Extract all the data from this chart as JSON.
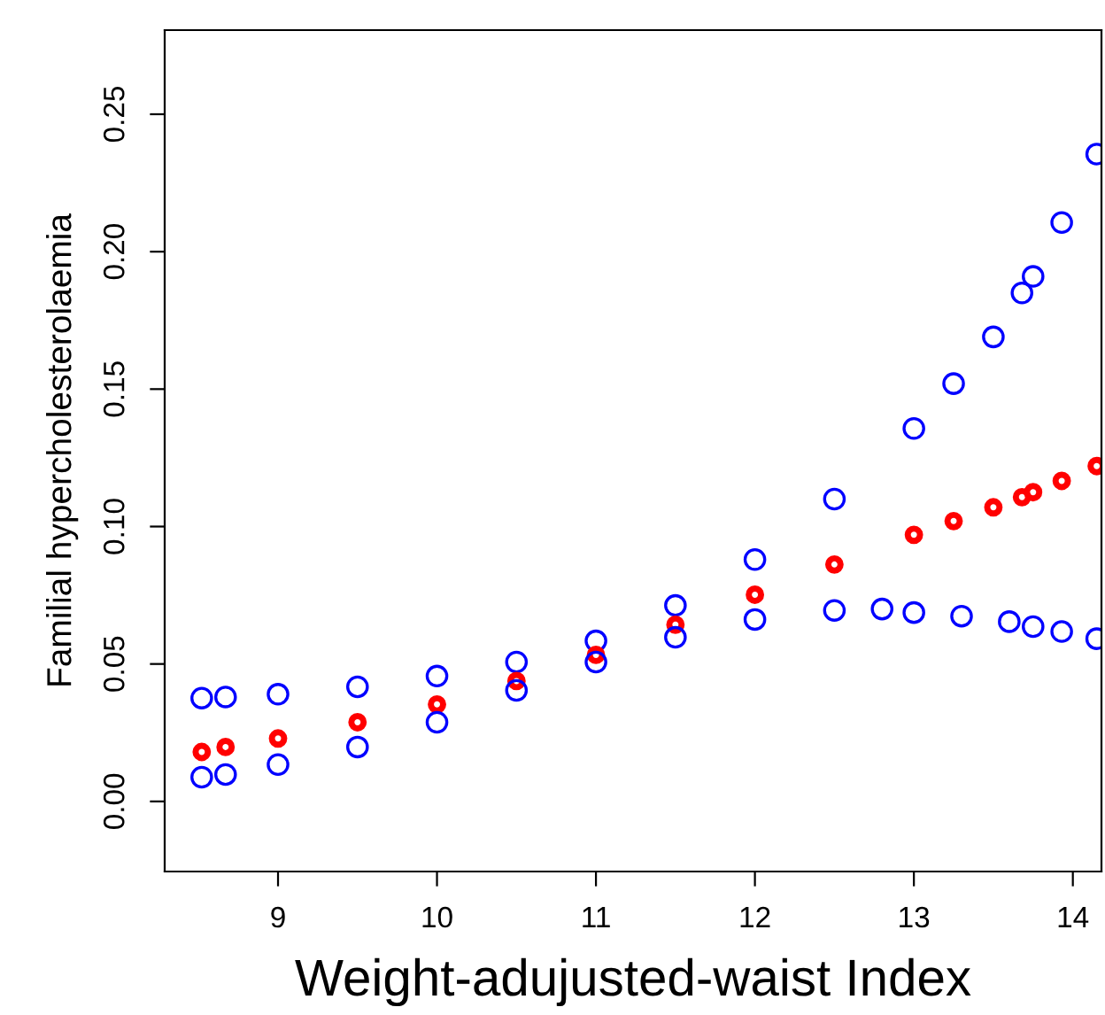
{
  "chart_data": {
    "type": "scatter",
    "xlabel": "Weight-adujusted-waist Index",
    "ylabel": "Familial hypercholesterolaemia",
    "xlim": [
      8.287,
      14.18
    ],
    "ylim": [
      -0.0255,
      0.2806
    ],
    "xticks": [
      9,
      10,
      11,
      12,
      13,
      14
    ],
    "yticks": [
      {
        "value": 0,
        "label": "0.00"
      },
      0.05,
      {
        "value": 0.1,
        "label": "0.10"
      },
      0.15,
      {
        "value": 0.2,
        "label": "0.20"
      },
      0.25
    ],
    "marker": "circle",
    "grid": false,
    "legend": false,
    "series": [
      {
        "color": "#0000ff",
        "x": [
          8.52,
          8.67,
          9,
          9.5,
          10,
          10.5,
          11,
          11.5,
          12,
          12.5,
          13,
          13.25,
          13.5,
          13.68,
          13.75,
          13.93,
          14.15
        ],
        "values": [
          0.0376,
          0.038,
          0.039,
          0.0417,
          0.0456,
          0.0507,
          0.0584,
          0.0713,
          0.088,
          0.11,
          0.1357,
          0.152,
          0.169,
          0.185,
          0.191,
          0.2106,
          0.2355
        ]
      },
      {
        "color": "#ff0000",
        "x": [
          8.52,
          8.67,
          9,
          9.5,
          10,
          10.5,
          11,
          11.5,
          12,
          12.5,
          13,
          13.25,
          13.5,
          13.68,
          13.75,
          13.93,
          14.15
        ],
        "values": [
          0.018,
          0.0198,
          0.0229,
          0.0288,
          0.0353,
          0.0438,
          0.0533,
          0.0643,
          0.0752,
          0.0862,
          0.097,
          0.102,
          0.107,
          0.1107,
          0.1125,
          0.1166,
          0.122
        ]
      },
      {
        "color": "#0000ff",
        "x": [
          8.52,
          8.67,
          9,
          9.5,
          10,
          10.5,
          11,
          11.5,
          12,
          12.5,
          12.8,
          13,
          13.3,
          13.6,
          13.75,
          13.93,
          14.15
        ],
        "values": [
          0.0088,
          0.0098,
          0.0134,
          0.0198,
          0.0288,
          0.0404,
          0.0507,
          0.0597,
          0.0662,
          0.0695,
          0.07,
          0.0687,
          0.0674,
          0.0654,
          0.0636,
          0.0618,
          0.0592
        ]
      }
    ]
  }
}
